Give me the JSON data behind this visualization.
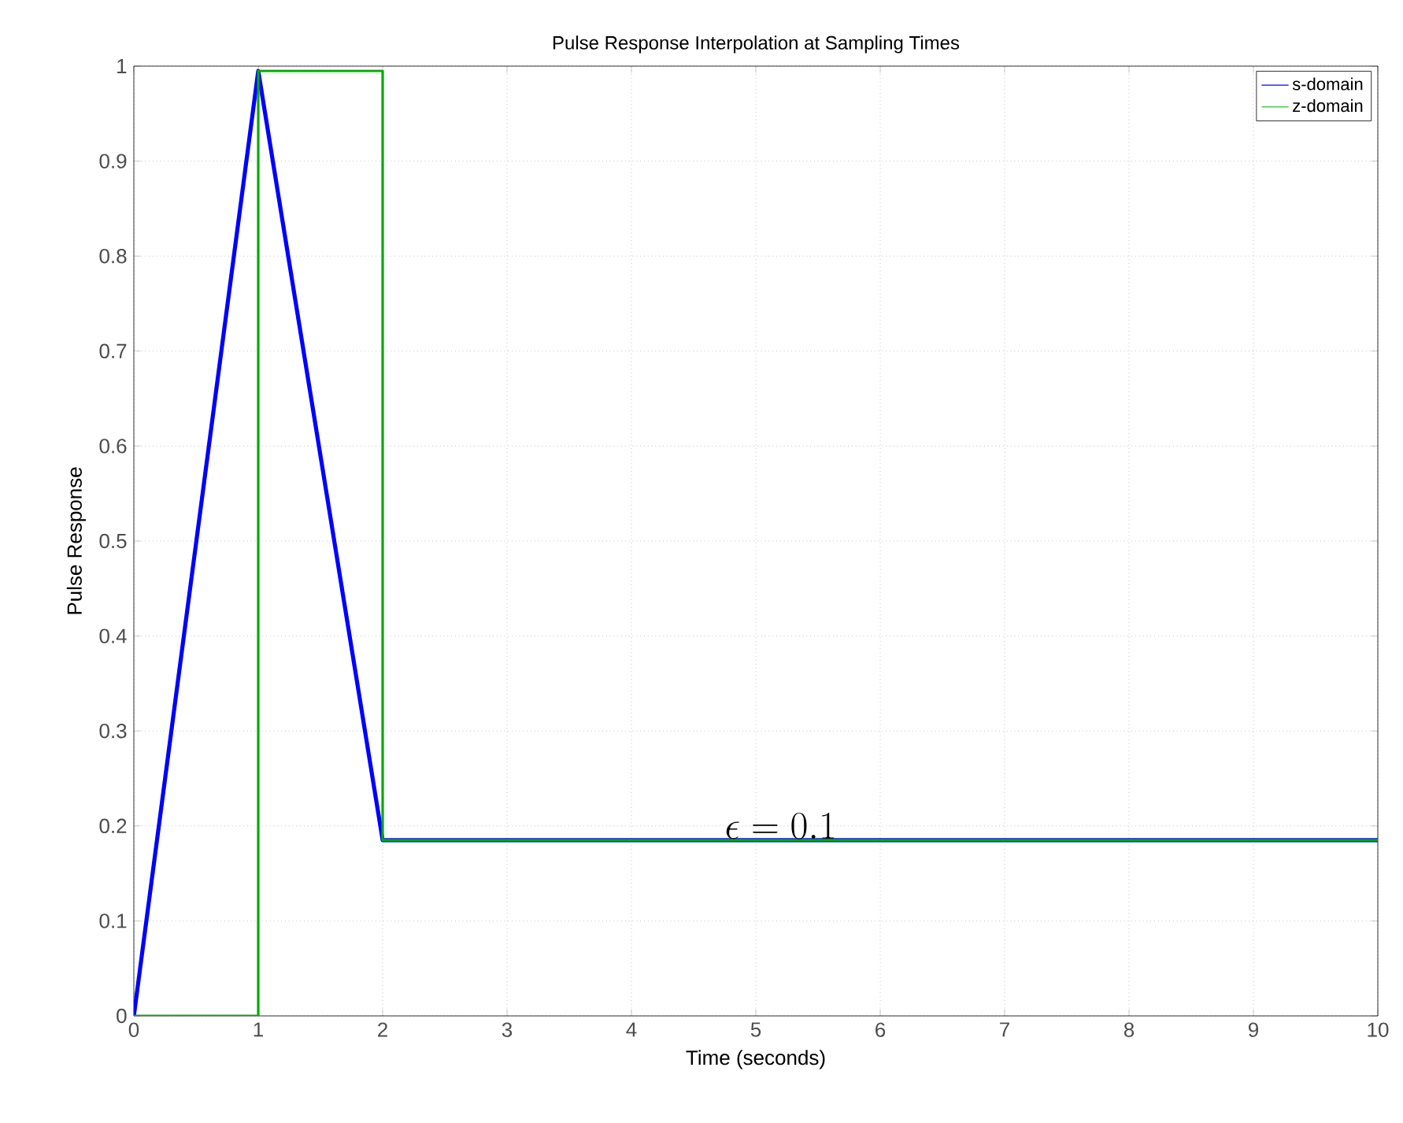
{
  "chart_data": {
    "type": "line",
    "title": "Pulse Response Interpolation at Sampling Times",
    "xlabel": "Time (seconds)",
    "ylabel": "Pulse Response",
    "series": [
      {
        "name": "s-domain",
        "color": "#0000ff",
        "x": [
          0,
          1,
          2,
          10
        ],
        "values": [
          0,
          0.995,
          0.185,
          0.185
        ]
      },
      {
        "name": "z-domain",
        "type": "step",
        "color": "#00aa00",
        "x": [
          0,
          1,
          2,
          10
        ],
        "values": [
          0,
          0.995,
          0.185,
          0.185
        ]
      }
    ],
    "xlim": [
      0,
      10
    ],
    "ylim": [
      0,
      1
    ],
    "xticks": [
      0,
      1,
      2,
      3,
      4,
      5,
      6,
      7,
      8,
      9,
      10
    ],
    "yticks": [
      0,
      0.1,
      0.2,
      0.3,
      0.4,
      0.5,
      0.6,
      0.7,
      0.8,
      0.9,
      1
    ],
    "grid": true,
    "legend": "top right",
    "annotations": [
      "\\epsilon = 0.1"
    ]
  }
}
